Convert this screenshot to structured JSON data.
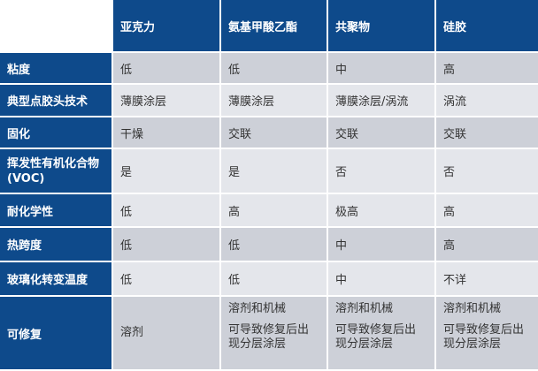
{
  "header": [
    "",
    "亚克力",
    "氨基甲酸乙酯",
    "共聚物",
    "硅胶"
  ],
  "rows": [
    {
      "label": "粘度",
      "cells": [
        "低",
        "低",
        "中",
        "高"
      ]
    },
    {
      "label": "典型点胶头技术",
      "cells": [
        "薄膜涂层",
        "薄膜涂层",
        "薄膜涂层/涡流",
        "涡流"
      ]
    },
    {
      "label": "固化",
      "cells": [
        "干燥",
        "交联",
        "交联",
        "交联"
      ]
    },
    {
      "label": "挥发性有机化合物(VOC)",
      "cells": [
        "是",
        "是",
        "否",
        "否"
      ]
    },
    {
      "label": "耐化学性",
      "cells": [
        "低",
        "高",
        "极高",
        "高"
      ]
    },
    {
      "label": "热跨度",
      "cells": [
        "低",
        "低",
        "中",
        "高"
      ]
    },
    {
      "label": "玻璃化转变温度",
      "cells": [
        "低",
        "低",
        "中",
        "不详"
      ]
    },
    {
      "label": "可修复",
      "cells": [
        {
          "line1": "溶剂",
          "line2": ""
        },
        {
          "line1": "溶剂和机械",
          "line2": "可导致修复后出现分层涂层"
        },
        {
          "line1": "溶剂和机械",
          "line2": "可导致修复后出现分层涂层"
        },
        {
          "line1": "溶剂和机械",
          "line2": "可导致修复后出现分层涂层"
        }
      ]
    }
  ],
  "colors": {
    "header_bg": "#0e4a8b",
    "row_dark": "#cdd0d8",
    "row_light": "#e4e6eb"
  }
}
